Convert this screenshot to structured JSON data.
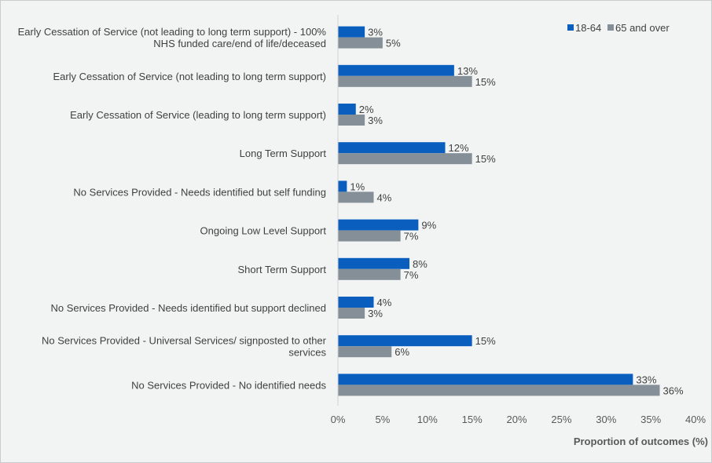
{
  "chart_data": {
    "type": "bar",
    "orientation": "horizontal",
    "categories": [
      [
        "Early Cessation of Service (not leading to long term support) - 100%",
        "NHS funded care/end of life/deceased"
      ],
      [
        "Early Cessation of Service (not leading to long term support)"
      ],
      [
        "Early Cessation of Service (leading to long term support)"
      ],
      [
        "Long Term Support"
      ],
      [
        "No Services Provided - Needs identified but self funding"
      ],
      [
        "Ongoing Low Level Support"
      ],
      [
        "Short Term Support"
      ],
      [
        "No Services Provided - Needs identified but support declined"
      ],
      [
        "No Services Provided - Universal Services/ signposted to other",
        "services"
      ],
      [
        "No Services Provided - No identified needs"
      ]
    ],
    "series": [
      {
        "name": "18-64",
        "color": "#0a5fbe",
        "values": [
          3,
          13,
          2,
          12,
          1,
          9,
          8,
          4,
          15,
          33
        ]
      },
      {
        "name": "65 and over",
        "color": "#858f97",
        "values": [
          5,
          15,
          3,
          15,
          4,
          7,
          7,
          3,
          6,
          36
        ]
      }
    ],
    "data_label_suffix": "%",
    "xlim": [
      0,
      40
    ],
    "xticks": [
      0,
      5,
      10,
      15,
      20,
      25,
      30,
      35,
      40
    ],
    "tick_suffix": "%",
    "xlabel": "Proportion of outcomes (%)",
    "title": "",
    "legend_position": "top-right",
    "grid": false
  }
}
